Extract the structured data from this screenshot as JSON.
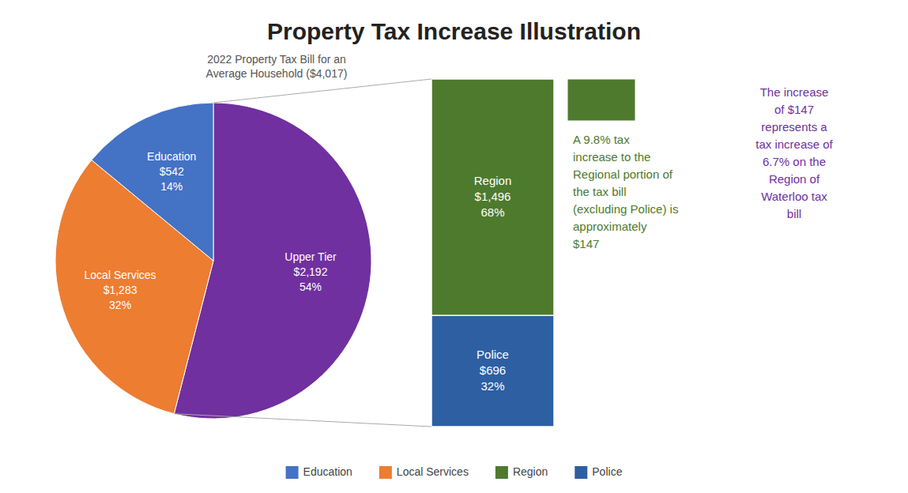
{
  "chart_data": [
    {
      "type": "pie",
      "title": "Property Tax Increase Illustration",
      "subtitle": "2022 Property Tax Bill for an\nAverage Household ($4,017)",
      "categories": [
        "Upper Tier",
        "Local Services",
        "Education"
      ],
      "values": [
        54,
        32,
        14
      ],
      "value_labels": [
        "54%",
        "32%",
        "14%"
      ],
      "amount_labels": [
        "$2,192",
        "$1,283",
        "$542"
      ],
      "colors": [
        "#7030a0",
        "#ed7d31",
        "#4472c4"
      ],
      "data_labels": true,
      "legend": "bottom"
    },
    {
      "type": "bar",
      "stacked": true,
      "breakdown_of": "Upper Tier",
      "categories": [
        null
      ],
      "series": [
        {
          "name": "Police",
          "color": "#2e5fa3",
          "values": [
            32
          ],
          "value_labels": [
            "32%"
          ],
          "amount_labels": [
            "$696"
          ]
        },
        {
          "name": "Region",
          "color": "#4e7a2e",
          "values": [
            68
          ],
          "value_labels": [
            "68%"
          ],
          "amount_labels": [
            "$1,496"
          ]
        }
      ],
      "ylim": [
        0,
        100
      ],
      "tick_labels": false,
      "data_labels": true,
      "legend": "bottom",
      "annotations": [
        {
          "text": "A 9.8% tax\nincrease to the\nRegional portion of\nthe tax bill\n(excluding Police) is\napproximately\n$147",
          "color": "#4e7a2e"
        },
        {
          "text": "The increase\nof $147\nrepresents a\ntax increase of\n6.7% on the\nRegion of\nWaterloo tax\nbill",
          "color": "#7030a0"
        }
      ]
    }
  ]
}
